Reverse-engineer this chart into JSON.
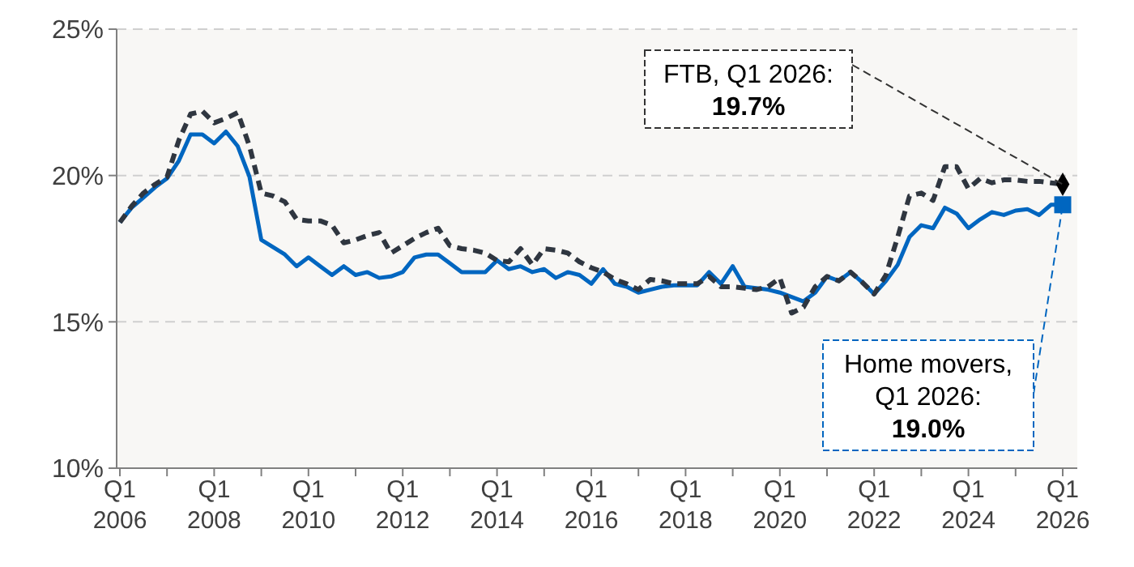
{
  "chart_data": {
    "type": "line",
    "ylim": [
      10,
      25
    ],
    "yticks": [
      {
        "value": 10,
        "label": "10%"
      },
      {
        "value": 15,
        "label": "15%"
      },
      {
        "value": 20,
        "label": "20%"
      },
      {
        "value": 25,
        "label": "25%"
      }
    ],
    "grid": "y",
    "legend": false,
    "categories": [
      "Q1\n2006",
      null,
      null,
      null,
      null,
      null,
      null,
      null,
      "Q1\n2008",
      null,
      null,
      null,
      null,
      null,
      null,
      null,
      "Q1\n2010",
      null,
      null,
      null,
      null,
      null,
      null,
      null,
      "Q1\n2012",
      null,
      null,
      null,
      null,
      null,
      null,
      null,
      "Q1\n2014",
      null,
      null,
      null,
      null,
      null,
      null,
      null,
      "Q1\n2016",
      null,
      null,
      null,
      null,
      null,
      null,
      null,
      "Q1\n2018",
      null,
      null,
      null,
      null,
      null,
      null,
      null,
      "Q1\n2020",
      null,
      null,
      null,
      null,
      null,
      null,
      null,
      "Q1\n2022",
      null,
      null,
      null,
      null,
      null,
      null,
      null,
      "Q1\n2024",
      null,
      null,
      null,
      null,
      null,
      null,
      null,
      "Q1\n2026"
    ],
    "series": [
      {
        "color": "#0066c0",
        "line_style": "solid",
        "values": [
          18.4,
          18.9,
          19.25,
          19.6,
          19.9,
          20.5,
          21.4,
          21.4,
          21.1,
          21.5,
          21.0,
          19.95,
          17.8,
          17.55,
          17.3,
          16.9,
          17.2,
          16.9,
          16.6,
          16.9,
          16.6,
          16.7,
          16.5,
          16.55,
          16.7,
          17.2,
          17.3,
          17.3,
          17.0,
          16.7,
          16.7,
          16.7,
          17.1,
          16.8,
          16.9,
          16.7,
          16.8,
          16.5,
          16.7,
          16.6,
          16.3,
          16.8,
          16.3,
          16.2,
          16.0,
          16.1,
          16.2,
          16.25,
          16.25,
          16.25,
          16.7,
          16.3,
          16.9,
          16.2,
          16.15,
          16.1,
          16.0,
          15.85,
          15.7,
          16.0,
          16.55,
          16.4,
          16.7,
          16.35,
          15.95,
          16.4,
          16.95,
          17.9,
          18.3,
          18.2,
          18.9,
          18.7,
          18.2,
          18.5,
          18.75,
          18.65,
          18.8,
          18.85,
          18.65,
          19.0,
          19.0
        ]
      },
      {
        "color": "#2f3640",
        "line_style": "dashed",
        "values": [
          18.4,
          18.95,
          19.4,
          19.7,
          19.95,
          21.2,
          22.1,
          22.2,
          21.8,
          21.95,
          22.15,
          21.0,
          19.4,
          19.3,
          19.1,
          18.5,
          18.45,
          18.45,
          18.3,
          17.7,
          17.8,
          17.95,
          18.05,
          17.35,
          17.6,
          17.85,
          18.05,
          18.2,
          17.6,
          17.5,
          17.45,
          17.35,
          17.1,
          17.05,
          17.5,
          16.95,
          17.5,
          17.45,
          17.35,
          17.05,
          16.85,
          16.7,
          16.45,
          16.3,
          16.1,
          16.45,
          16.4,
          16.3,
          16.3,
          16.3,
          16.55,
          16.2,
          16.2,
          16.15,
          16.1,
          16.2,
          16.5,
          15.3,
          15.5,
          16.2,
          16.55,
          16.4,
          16.7,
          16.35,
          15.95,
          16.6,
          17.9,
          19.3,
          19.4,
          19.15,
          20.3,
          20.3,
          19.55,
          19.9,
          19.75,
          19.85,
          19.85,
          19.8,
          19.8,
          19.75,
          19.7
        ]
      },
      {
        "type": "scatter",
        "color": "#0066c0",
        "marker": "square",
        "x": [
          "Q1\n2026"
        ],
        "values": [
          19.0
        ]
      },
      {
        "type": "scatter",
        "color": "#000000",
        "marker": "diamond",
        "x": [
          "Q1\n2026"
        ],
        "values": [
          19.7
        ]
      }
    ],
    "annotations": [
      {
        "text": "FTB, Q1 2026:\n19.7%",
        "x": "Q1\n2026",
        "y": 19.7
      },
      {
        "text": "Home movers,\nQ1 2026:\n19.0%",
        "x": "Q1\n2026",
        "y": 19.0
      }
    ]
  }
}
